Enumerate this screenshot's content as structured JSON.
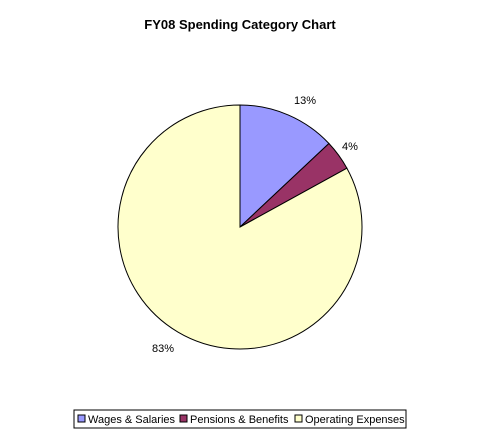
{
  "chart_data": {
    "type": "pie",
    "title": "FY08 Spending Category Chart",
    "slices": [
      {
        "name": "Wages & Salaries",
        "value": 13,
        "label": "13%",
        "color": "#9999ff"
      },
      {
        "name": "Pensions & Benefits",
        "value": 4,
        "label": "4%",
        "color": "#993366"
      },
      {
        "name": "Operating Expenses",
        "value": 83,
        "label": "83%",
        "color": "#ffffcc"
      }
    ],
    "legend_position": "bottom"
  }
}
